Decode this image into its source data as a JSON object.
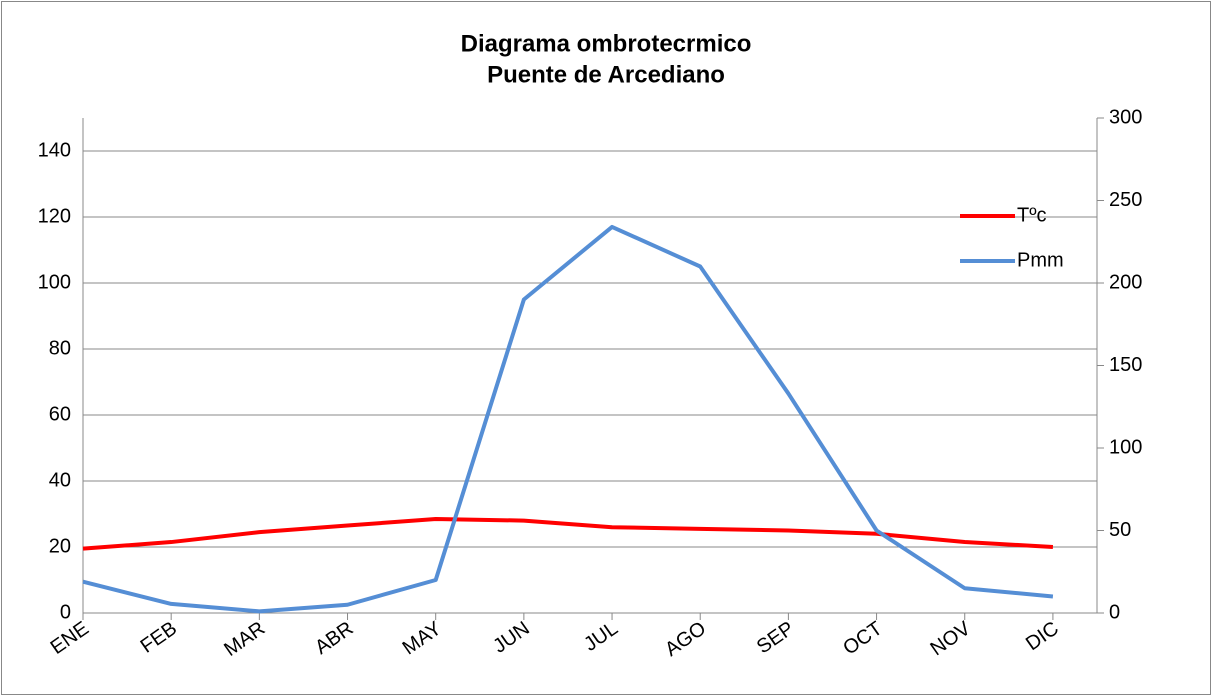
{
  "chart_data": {
    "type": "line",
    "title": "Diagrama ombrotecrmico",
    "subtitle": "Puente de Arcediano",
    "categories": [
      "ENE",
      "FEB",
      "MAR",
      "ABR",
      "MAY",
      "JUN",
      "JUL",
      "AGO",
      "SEP",
      "OCT",
      "NOV",
      "DIC"
    ],
    "series": [
      {
        "name": "Tºc",
        "color": "#ff0000",
        "values": [
          19.5,
          21.5,
          24.5,
          26.5,
          28.5,
          28,
          26,
          25.5,
          25,
          24,
          21.5,
          20
        ]
      },
      {
        "name": "Pmm",
        "color": "#558ed5",
        "axis": "y2",
        "values": [
          19,
          5.5,
          1,
          5,
          20,
          190,
          234,
          210,
          133,
          50,
          15,
          10
        ]
      }
    ],
    "ylim": [
      0,
      150
    ],
    "yticks": [
      0,
      20,
      40,
      60,
      80,
      100,
      120,
      140
    ],
    "y2lim": [
      0,
      300
    ],
    "y2ticks": [
      0,
      50,
      100,
      150,
      200,
      250,
      300
    ],
    "grid": true,
    "legend": "right"
  }
}
